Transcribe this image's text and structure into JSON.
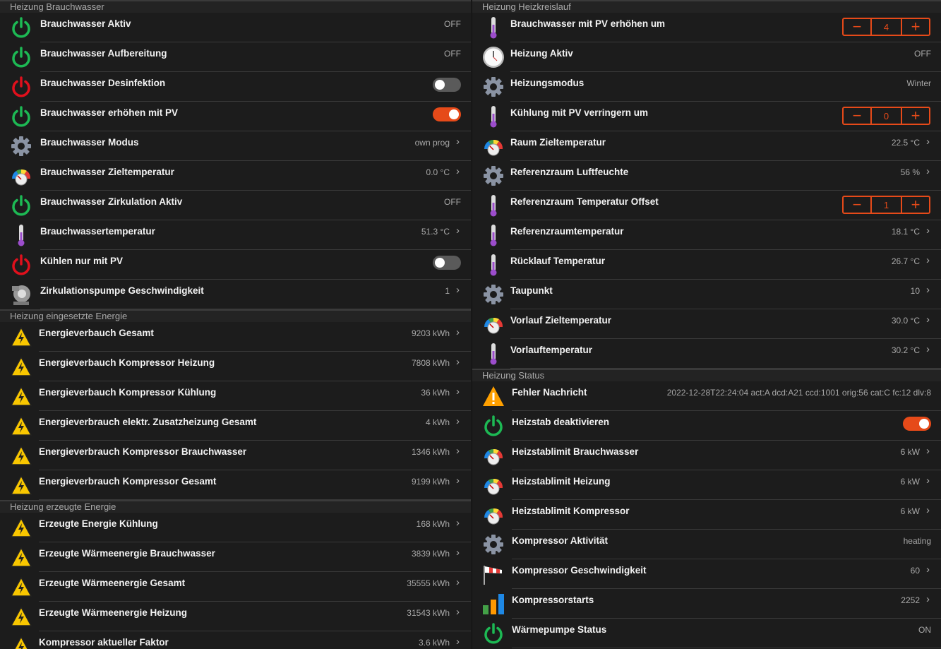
{
  "colors": {
    "accent": "#e64a19",
    "power_on": "#1db954",
    "power_off": "#e0101c",
    "background": "#1c1c1c"
  },
  "left": [
    {
      "title": "Heizung Brauchwasser",
      "cls": "",
      "rows": [
        {
          "icon": "power-green",
          "label": "Brauchwasser Aktiv",
          "value": "OFF"
        },
        {
          "icon": "power-green",
          "label": "Brauchwasser Aufbereitung",
          "value": "OFF"
        },
        {
          "icon": "power-red",
          "label": "Brauchwasser Desinfektion",
          "toggle": false
        },
        {
          "icon": "power-green",
          "label": "Brauchwasser erhöhen mit PV",
          "toggle": true
        },
        {
          "icon": "gear",
          "label": "Brauchwasser Modus",
          "value": "own prog",
          "chevron": true
        },
        {
          "icon": "gauge",
          "label": "Brauchwasser Zieltemperatur",
          "value": "0.0 °C",
          "chevron": true
        },
        {
          "icon": "power-green",
          "label": "Brauchwasser Zirkulation Aktiv",
          "value": "OFF"
        },
        {
          "icon": "thermometer",
          "label": "Brauchwassertemperatur",
          "value": "51.3 °C",
          "chevron": true
        },
        {
          "icon": "power-red",
          "label": "Kühlen nur mit PV",
          "toggle": false
        },
        {
          "icon": "pump",
          "label": "Zirkulationspumpe Geschwindigkeit",
          "value": "1",
          "chevron": true
        }
      ]
    },
    {
      "title": "Heizung eingesetzte Energie",
      "cls": "sec2",
      "rows": [
        {
          "icon": "lightning",
          "label": "Energieverbauch Gesamt",
          "value": "9203 kWh",
          "chevron": true
        },
        {
          "icon": "lightning",
          "label": "Energieverbauch Kompressor Heizung",
          "value": "7808 kWh",
          "chevron": true
        },
        {
          "icon": "lightning",
          "label": "Energieverbauch Kompressor Kühlung",
          "value": "36 kWh",
          "chevron": true
        },
        {
          "icon": "lightning",
          "label": "Energieverbrauch elektr. Zusatzheizung Gesamt",
          "value": "4 kWh",
          "chevron": true
        },
        {
          "icon": "lightning",
          "label": "Energieverbrauch Kompressor Brauchwasser",
          "value": "1346 kWh",
          "chevron": true
        },
        {
          "icon": "lightning",
          "label": "Energieverbrauch Kompressor Gesamt",
          "value": "9199 kWh",
          "chevron": true
        }
      ]
    },
    {
      "title": "Heizung erzeugte Energie",
      "cls": "sec2",
      "rows": [
        {
          "icon": "lightning",
          "label": "Erzeugte Energie Kühlung",
          "value": "168 kWh",
          "chevron": true
        },
        {
          "icon": "lightning",
          "label": "Erzeugte Wärmeenergie Brauchwasser",
          "value": "3839 kWh",
          "chevron": true
        },
        {
          "icon": "lightning",
          "label": "Erzeugte Wärmeenergie Gesamt",
          "value": "35555 kWh",
          "chevron": true
        },
        {
          "icon": "lightning",
          "label": "Erzeugte Wärmeenergie Heizung",
          "value": "31543 kWh",
          "chevron": true
        },
        {
          "icon": "lightning",
          "label": "Kompressor aktueller Faktor",
          "value": "3.6 kWh",
          "chevron": true
        }
      ]
    }
  ],
  "right": [
    {
      "title": "Heizung Heizkreislauf",
      "cls": "",
      "rows": [
        {
          "icon": "thermometer",
          "label": "Brauchwasser mit PV erhöhen um",
          "stepper": "4"
        },
        {
          "icon": "clock",
          "label": "Heizung Aktiv",
          "value": "OFF"
        },
        {
          "icon": "gear",
          "label": "Heizungsmodus",
          "value": "Winter"
        },
        {
          "icon": "thermometer",
          "label": "Kühlung mit PV verringern um",
          "stepper": "0"
        },
        {
          "icon": "gauge",
          "label": "Raum Zieltemperatur",
          "value": "22.5 °C",
          "chevron": true
        },
        {
          "icon": "gear",
          "label": "Referenzraum Luftfeuchte",
          "value": "56 %",
          "chevron": true
        },
        {
          "icon": "thermometer",
          "label": "Referenzraum Temperatur Offset",
          "stepper": "1"
        },
        {
          "icon": "thermometer",
          "label": "Referenzraumtemperatur",
          "value": "18.1 °C",
          "chevron": true
        },
        {
          "icon": "thermometer",
          "label": "Rücklauf Temperatur",
          "value": "26.7 °C",
          "chevron": true
        },
        {
          "icon": "gear",
          "label": "Taupunkt",
          "value": "10",
          "chevron": true
        },
        {
          "icon": "gauge",
          "label": "Vorlauf Zieltemperatur",
          "value": "30.0 °C",
          "chevron": true
        },
        {
          "icon": "thermometer",
          "label": "Vorlauftemperatur",
          "value": "30.2 °C",
          "chevron": true
        }
      ]
    },
    {
      "title": "Heizung Status",
      "cls": "stat",
      "rows": [
        {
          "icon": "warning",
          "label": "Fehler Nachricht",
          "value": "2022-12-28T22:24:04 act:A dcd:A21 ccd:1001 orig:56 cat:C fc:12 dlv:8"
        },
        {
          "icon": "power-green",
          "label": "Heizstab deaktivieren",
          "toggle": true
        },
        {
          "icon": "gauge",
          "label": "Heizstablimit Brauchwasser",
          "value": "6 kW",
          "chevron": true
        },
        {
          "icon": "gauge",
          "label": "Heizstablimit Heizung",
          "value": "6 kW",
          "chevron": true
        },
        {
          "icon": "gauge",
          "label": "Heizstablimit Kompressor",
          "value": "6 kW",
          "chevron": true
        },
        {
          "icon": "gear",
          "label": "Kompressor Aktivität",
          "value": "heating"
        },
        {
          "icon": "windsock",
          "label": "Kompressor Geschwindigkeit",
          "value": "60",
          "chevron": true
        },
        {
          "icon": "bar-chart",
          "label": "Kompressorstarts",
          "value": "2252",
          "chevron": true
        },
        {
          "icon": "power-green",
          "label": "Wärmepumpe Status",
          "value": "ON"
        }
      ]
    }
  ],
  "stepper": {
    "minus": "−",
    "plus": "+"
  },
  "chevron": "›"
}
